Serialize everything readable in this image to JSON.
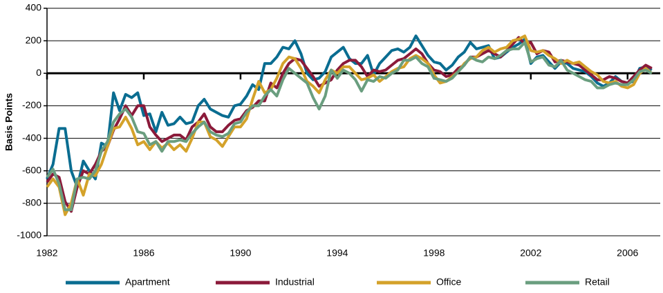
{
  "chart_data": {
    "type": "line",
    "y_label": "Basis Points",
    "x": [
      1982,
      1982.25,
      1982.5,
      1982.75,
      1983,
      1983.25,
      1983.5,
      1983.75,
      1984,
      1984.25,
      1984.5,
      1984.75,
      1985,
      1985.25,
      1985.5,
      1985.75,
      1986,
      1986.25,
      1986.5,
      1986.75,
      1987,
      1987.25,
      1987.5,
      1987.75,
      1988,
      1988.25,
      1988.5,
      1988.75,
      1989,
      1989.25,
      1989.5,
      1989.75,
      1990,
      1990.25,
      1990.5,
      1990.75,
      1991,
      1991.25,
      1991.5,
      1991.75,
      1992,
      1992.25,
      1992.5,
      1992.75,
      1993,
      1993.25,
      1993.5,
      1993.75,
      1994,
      1994.25,
      1994.5,
      1994.75,
      1995,
      1995.25,
      1995.5,
      1995.75,
      1996,
      1996.25,
      1996.5,
      1996.75,
      1997,
      1997.25,
      1997.5,
      1997.75,
      1998,
      1998.25,
      1998.5,
      1998.75,
      1999,
      1999.25,
      1999.5,
      1999.75,
      2000,
      2000.25,
      2000.5,
      2000.75,
      2001,
      2001.25,
      2001.5,
      2001.75,
      2002,
      2002.25,
      2002.5,
      2002.75,
      2003,
      2003.25,
      2003.5,
      2003.75,
      2004,
      2004.25,
      2004.5,
      2004.75,
      2005,
      2005.25,
      2005.5,
      2005.75,
      2006,
      2006.25,
      2006.5,
      2006.75,
      2007
    ],
    "series": [
      {
        "name": "Apartment",
        "color": "#0a6d91",
        "values": [
          -650,
          -560,
          -340,
          -340,
          -600,
          -700,
          -540,
          -600,
          -650,
          -430,
          -450,
          -120,
          -230,
          -130,
          -150,
          -120,
          -260,
          -250,
          -360,
          -240,
          -320,
          -310,
          -270,
          -310,
          -300,
          -200,
          -160,
          -220,
          -240,
          -260,
          -270,
          -200,
          -190,
          -140,
          -70,
          -100,
          60,
          60,
          100,
          160,
          150,
          200,
          120,
          0,
          -40,
          -30,
          10,
          100,
          130,
          160,
          90,
          60,
          60,
          110,
          -10,
          60,
          100,
          140,
          150,
          130,
          160,
          230,
          170,
          110,
          70,
          60,
          20,
          50,
          100,
          130,
          190,
          150,
          160,
          170,
          90,
          100,
          130,
          160,
          180,
          210,
          60,
          100,
          110,
          70,
          30,
          70,
          60,
          30,
          20,
          10,
          -20,
          -60,
          -80,
          -60,
          -20,
          -50,
          -60,
          -50,
          30,
          40,
          20
        ]
      },
      {
        "name": "Industrial",
        "color": "#8b1a3a",
        "values": [
          -670,
          -620,
          -640,
          -790,
          -850,
          -700,
          -600,
          -620,
          -560,
          -480,
          -450,
          -350,
          -280,
          -200,
          -260,
          -200,
          -200,
          -330,
          -380,
          -420,
          -400,
          -380,
          -380,
          -410,
          -330,
          -300,
          -250,
          -330,
          -360,
          -360,
          -320,
          -290,
          -280,
          -230,
          -210,
          -170,
          -170,
          -60,
          -90,
          0,
          60,
          90,
          80,
          30,
          -20,
          -80,
          -60,
          -40,
          20,
          60,
          80,
          80,
          40,
          -20,
          20,
          10,
          20,
          50,
          80,
          90,
          120,
          150,
          120,
          60,
          20,
          10,
          -20,
          -10,
          30,
          50,
          100,
          100,
          120,
          140,
          120,
          100,
          140,
          180,
          220,
          180,
          190,
          120,
          140,
          130,
          70,
          80,
          70,
          60,
          50,
          20,
          -10,
          -40,
          -40,
          -20,
          -30,
          -50,
          -60,
          -20,
          20,
          50,
          30
        ]
      },
      {
        "name": "Office",
        "color": "#d4a22a",
        "values": [
          -700,
          -650,
          -700,
          -870,
          -800,
          -650,
          -750,
          -620,
          -630,
          -560,
          -450,
          -340,
          -330,
          -270,
          -340,
          -440,
          -420,
          -470,
          -420,
          -460,
          -430,
          -470,
          -440,
          -480,
          -400,
          -300,
          -300,
          -390,
          -410,
          -450,
          -390,
          -330,
          -330,
          -280,
          -160,
          -50,
          -120,
          -100,
          -30,
          60,
          100,
          90,
          30,
          -50,
          -80,
          -120,
          -40,
          20,
          0,
          40,
          40,
          0,
          -40,
          -30,
          -10,
          -50,
          -20,
          10,
          30,
          40,
          90,
          110,
          90,
          60,
          -10,
          -60,
          -50,
          -20,
          10,
          60,
          90,
          100,
          140,
          160,
          130,
          150,
          160,
          200,
          210,
          230,
          140,
          130,
          140,
          110,
          90,
          60,
          80,
          60,
          70,
          40,
          10,
          -10,
          -50,
          -60,
          -50,
          -80,
          -90,
          -70,
          0,
          30,
          0
        ]
      },
      {
        "name": "Retail",
        "color": "#6a9e7f",
        "values": [
          -640,
          -590,
          -680,
          -840,
          -840,
          -650,
          -640,
          -650,
          -600,
          -480,
          -420,
          -300,
          -250,
          -220,
          -270,
          -360,
          -370,
          -440,
          -420,
          -480,
          -420,
          -420,
          -410,
          -420,
          -370,
          -330,
          -300,
          -360,
          -380,
          -390,
          -370,
          -310,
          -300,
          -240,
          -200,
          -200,
          -140,
          -100,
          -140,
          -40,
          30,
          0,
          -30,
          -60,
          -150,
          -220,
          -140,
          20,
          -30,
          20,
          0,
          -40,
          -110,
          -40,
          -50,
          -20,
          -30,
          0,
          20,
          80,
          80,
          100,
          60,
          40,
          -30,
          -40,
          -50,
          -30,
          10,
          50,
          100,
          80,
          70,
          100,
          90,
          110,
          140,
          150,
          150,
          190,
          70,
          90,
          100,
          50,
          40,
          80,
          20,
          0,
          -20,
          -40,
          -50,
          -90,
          -90,
          -70,
          -60,
          -70,
          -70,
          -40,
          10,
          20,
          0
        ]
      }
    ],
    "xlim": [
      1982,
      2007.35
    ],
    "xticks": [
      1982,
      1986,
      1990,
      1994,
      1998,
      2002,
      2006
    ],
    "ylim": [
      -1000,
      400
    ],
    "yticks": [
      400,
      200,
      0,
      -200,
      -400,
      -600,
      -800,
      -1000
    ],
    "grid": true,
    "legend": "bottom"
  }
}
